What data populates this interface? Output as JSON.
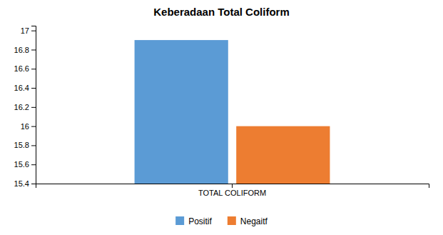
{
  "chart_data": {
    "type": "bar",
    "title": "Keberadaan Total Coliform",
    "categories": [
      "TOTAL COLIFORM"
    ],
    "series": [
      {
        "name": "Positif",
        "color": "#5B9BD5",
        "values": [
          16.9
        ]
      },
      {
        "name": "Negaitf",
        "color": "#ED7D31",
        "values": [
          16.0
        ]
      }
    ],
    "ylim": [
      15.4,
      17.05
    ],
    "yticks": [
      15.4,
      15.6,
      15.8,
      16,
      16.2,
      16.4,
      16.6,
      16.8,
      17
    ],
    "grid": false,
    "legend": "bottom"
  }
}
